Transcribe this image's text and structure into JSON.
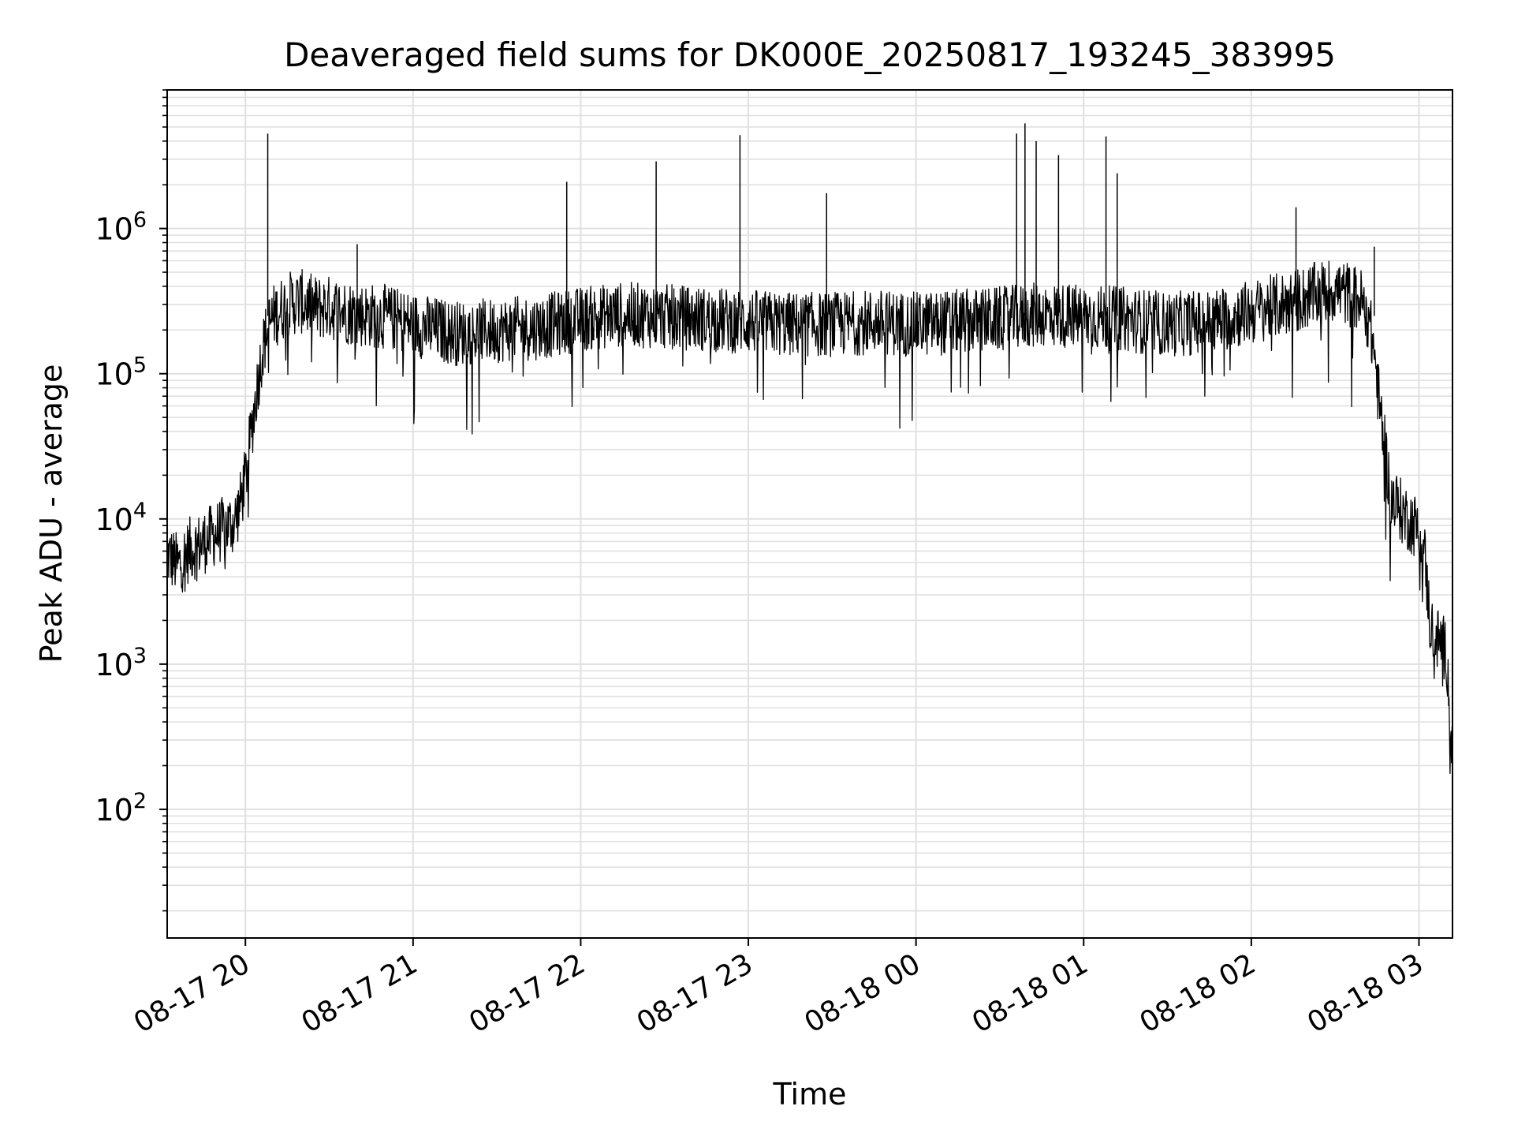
{
  "chart_data": {
    "type": "line",
    "title": "Deaveraged field sums for DK000E_20250817_193245_383995",
    "xlabel": "Time",
    "ylabel": "Peak ADU - average",
    "x_scale": "time",
    "y_scale": "log",
    "xlim": [
      "2025-08-17 19:32",
      "2025-08-18 03:12"
    ],
    "ylim": [
      13,
      9000000
    ],
    "x_ticks": [
      {
        "value": "2025-08-17 20:00",
        "label": "08-17 20"
      },
      {
        "value": "2025-08-17 21:00",
        "label": "08-17 21"
      },
      {
        "value": "2025-08-17 22:00",
        "label": "08-17 22"
      },
      {
        "value": "2025-08-17 23:00",
        "label": "08-17 23"
      },
      {
        "value": "2025-08-18 00:00",
        "label": "08-18 00"
      },
      {
        "value": "2025-08-18 01:00",
        "label": "08-18 01"
      },
      {
        "value": "2025-08-18 02:00",
        "label": "08-18 02"
      },
      {
        "value": "2025-08-18 03:00",
        "label": "08-18 03"
      }
    ],
    "y_ticks": [
      {
        "value": 100,
        "base": "10",
        "exp": "2"
      },
      {
        "value": 1000,
        "base": "10",
        "exp": "3"
      },
      {
        "value": 10000,
        "base": "10",
        "exp": "4"
      },
      {
        "value": 100000,
        "base": "10",
        "exp": "5"
      },
      {
        "value": 1000000,
        "base": "10",
        "exp": "6"
      }
    ],
    "grid": true,
    "grid_minor": true,
    "line_color": "#000000",
    "grid_color": "#e0e0e0",
    "series": [
      {
        "x": [
          "2025-08-17 19:32",
          "2025-08-17 19:36",
          "2025-08-17 19:40",
          "2025-08-17 19:44",
          "2025-08-17 19:48",
          "2025-08-17 19:52",
          "2025-08-17 19:56",
          "2025-08-17 19:58",
          "2025-08-17 20:00",
          "2025-08-17 20:02",
          "2025-08-17 20:04",
          "2025-08-17 20:06",
          "2025-08-17 20:08",
          "2025-08-17 20:10",
          "2025-08-17 20:15",
          "2025-08-17 20:20",
          "2025-08-17 20:25",
          "2025-08-17 20:30",
          "2025-08-17 20:40",
          "2025-08-17 20:50",
          "2025-08-17 21:00",
          "2025-08-17 21:15",
          "2025-08-17 21:30",
          "2025-08-17 21:45",
          "2025-08-17 22:00",
          "2025-08-17 22:15",
          "2025-08-17 22:30",
          "2025-08-17 22:45",
          "2025-08-17 23:00",
          "2025-08-17 23:15",
          "2025-08-17 23:30",
          "2025-08-17 23:45",
          "2025-08-18 00:00",
          "2025-08-18 00:15",
          "2025-08-18 00:30",
          "2025-08-18 00:45",
          "2025-08-18 01:00",
          "2025-08-18 01:15",
          "2025-08-18 01:30",
          "2025-08-18 01:45",
          "2025-08-18 02:00",
          "2025-08-18 02:15",
          "2025-08-18 02:25",
          "2025-08-18 02:30",
          "2025-08-18 02:35",
          "2025-08-18 02:40",
          "2025-08-18 02:42",
          "2025-08-18 02:44",
          "2025-08-18 02:46",
          "2025-08-18 02:50",
          "2025-08-18 02:55",
          "2025-08-18 03:00",
          "2025-08-18 03:02",
          "2025-08-18 03:04",
          "2025-08-18 03:06",
          "2025-08-18 03:08",
          "2025-08-18 03:10",
          "2025-08-18 03:12"
        ],
        "y": [
          6000,
          5000,
          6500,
          7000,
          8000,
          9000,
          10000,
          13000,
          20000,
          40000,
          80000,
          150000,
          220000,
          260000,
          320000,
          330000,
          300000,
          300000,
          270000,
          260000,
          230000,
          200000,
          210000,
          220000,
          250000,
          270000,
          260000,
          250000,
          240000,
          230000,
          230000,
          240000,
          230000,
          240000,
          250000,
          270000,
          260000,
          250000,
          230000,
          240000,
          280000,
          330000,
          380000,
          400000,
          370000,
          330000,
          250000,
          150000,
          60000,
          15000,
          11000,
          9000,
          6000,
          2000,
          1600,
          1500,
          1200,
          200
        ]
      }
    ],
    "spikes": [
      {
        "x": "2025-08-17 20:08",
        "y": 4500000
      },
      {
        "x": "2025-08-17 20:40",
        "y": 780000
      },
      {
        "x": "2025-08-17 21:55",
        "y": 2100000
      },
      {
        "x": "2025-08-17 22:27",
        "y": 2900000
      },
      {
        "x": "2025-08-17 22:57",
        "y": 4400000
      },
      {
        "x": "2025-08-17 23:28",
        "y": 1750000
      },
      {
        "x": "2025-08-18 00:36",
        "y": 4500000
      },
      {
        "x": "2025-08-18 00:39",
        "y": 5300000
      },
      {
        "x": "2025-08-18 00:43",
        "y": 4000000
      },
      {
        "x": "2025-08-18 00:51",
        "y": 3200000
      },
      {
        "x": "2025-08-18 01:08",
        "y": 4300000
      },
      {
        "x": "2025-08-18 01:12",
        "y": 2400000
      },
      {
        "x": "2025-08-18 02:16",
        "y": 1400000
      },
      {
        "x": "2025-08-18 02:44",
        "y": 750000
      }
    ]
  }
}
